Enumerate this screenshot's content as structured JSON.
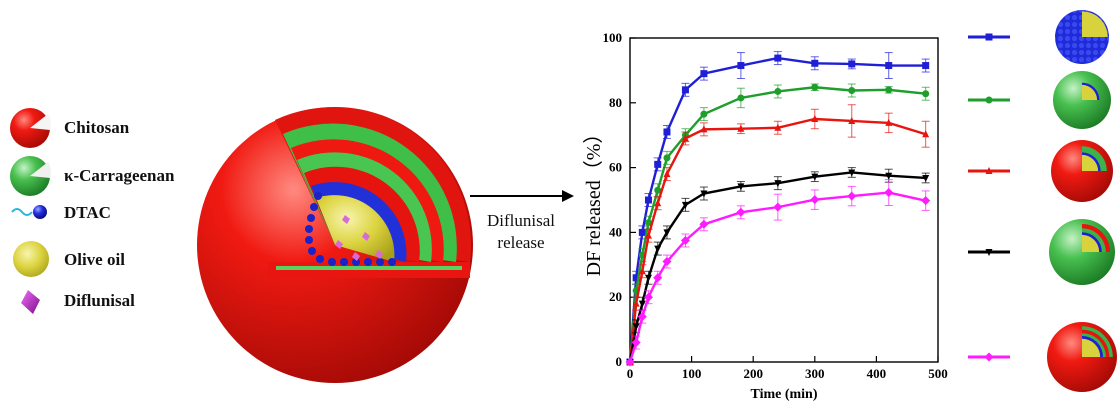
{
  "legend": {
    "items": [
      {
        "label": "Chitosan"
      },
      {
        "label": "κ-Carrageenan"
      },
      {
        "label": "DTAC"
      },
      {
        "label": "Olive oil"
      },
      {
        "label": "Diflunisal"
      }
    ]
  },
  "arrow": {
    "line1": "Diflunisal",
    "line2": "release"
  },
  "colors": {
    "chitosan_red": "#e8140f",
    "carrageenan_green": "#3cb34a",
    "dtac_blue": "#1f1fd6",
    "oil_yellow": "#d8d23c",
    "diflunisal_magenta": "#c21bd0"
  },
  "chart_data": {
    "type": "line",
    "xlabel": "Time (min)",
    "ylabel": "DF released（%）",
    "xlim": [
      0,
      500
    ],
    "ylim": [
      0,
      100
    ],
    "xticks": [
      0,
      100,
      200,
      300,
      400,
      500
    ],
    "yticks": [
      0,
      20,
      40,
      60,
      80,
      100
    ],
    "legend_position": "right",
    "x": [
      0,
      10,
      20,
      30,
      45,
      60,
      90,
      120,
      180,
      240,
      300,
      360,
      420,
      480
    ],
    "series": [
      {
        "color": "#1f1fd6",
        "marker": "square",
        "values": [
          0,
          26,
          40,
          50,
          61,
          71,
          84,
          89,
          91.5,
          93.8,
          92.2,
          92,
          91.5,
          91.5
        ],
        "errors": [
          0,
          2,
          2,
          2,
          2,
          2,
          2,
          2,
          4,
          2,
          2,
          1.5,
          4,
          2
        ]
      },
      {
        "color": "#1e9e2a",
        "marker": "circle",
        "values": [
          0,
          22,
          33,
          43,
          53,
          63,
          70,
          76.5,
          81.5,
          83.5,
          84.8,
          83.8,
          84,
          82.8
        ],
        "errors": [
          0,
          2,
          2,
          2,
          2,
          2,
          2,
          2,
          3,
          2,
          1,
          2,
          1,
          2
        ]
      },
      {
        "color": "#e8140f",
        "marker": "triangle-up",
        "values": [
          0,
          18,
          28,
          39,
          49,
          58,
          69,
          71.8,
          72,
          72.3,
          75,
          74.4,
          73.8,
          70.3
        ],
        "errors": [
          0,
          2,
          2,
          2,
          2,
          2,
          2,
          2,
          1.5,
          2,
          3,
          5,
          3,
          4
        ]
      },
      {
        "color": "#000000",
        "marker": "triangle-down",
        "values": [
          0,
          11,
          18,
          26,
          35,
          40,
          48.5,
          52,
          54.2,
          55.2,
          57.2,
          58.5,
          57.5,
          56.8
        ],
        "errors": [
          0,
          2,
          2,
          2,
          2,
          2,
          2,
          2,
          1.5,
          2,
          1.5,
          1.5,
          2,
          1.5
        ]
      },
      {
        "color": "#ff1aff",
        "marker": "diamond",
        "values": [
          0,
          6,
          14,
          20,
          26,
          31,
          37.5,
          42.5,
          46.2,
          47.8,
          50.1,
          51.2,
          52.3,
          49.8
        ],
        "errors": [
          0,
          2,
          2,
          2,
          2,
          2,
          2,
          2,
          2,
          4,
          3,
          3,
          4,
          3
        ]
      }
    ]
  }
}
